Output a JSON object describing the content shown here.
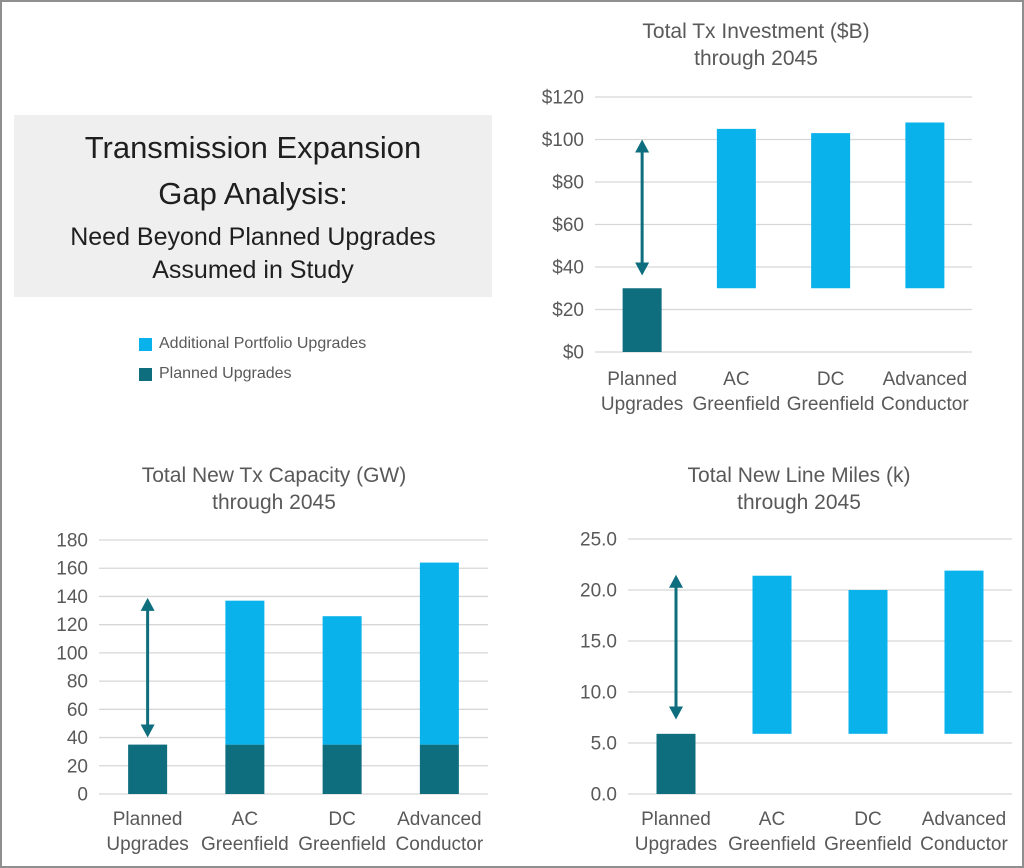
{
  "frame": {
    "border_color": "#8f8f8f",
    "background": "#ffffff"
  },
  "title_block": {
    "heading_lines": [
      "Transmission Expansion",
      "Gap Analysis:"
    ],
    "subheading_lines": [
      "Need Beyond Planned Upgrades",
      "Assumed in Study"
    ],
    "background": "#efefef",
    "text_color": "#1f1f1f"
  },
  "legend": {
    "items": [
      {
        "label": "Additional Portfolio Upgrades",
        "series": "additional",
        "color": "#0ab2ec"
      },
      {
        "label": "Planned Upgrades",
        "series": "planned",
        "color": "#0e6e7e"
      }
    ],
    "text_color": "#595959"
  },
  "colors": {
    "planned": "#0e6e7e",
    "additional": "#0ab2ec",
    "arrow": "#0e6e7e",
    "grid": "#d7d7d7",
    "axis_text": "#595959"
  },
  "chart_data": [
    {
      "type": "bar",
      "title": "Total Tx Investment ($B)",
      "subtitle": "through 2045",
      "unit": "$B",
      "categories": [
        "Planned Upgrades",
        "AC Greenfield",
        "DC Greenfield",
        "Advanced Conductor"
      ],
      "category_lines": [
        [
          "Planned",
          "Upgrades"
        ],
        [
          "AC",
          "Greenfield"
        ],
        [
          "DC",
          "Greenfield"
        ],
        [
          "Advanced",
          "Conductor"
        ]
      ],
      "ylim": [
        0,
        120
      ],
      "ytick_labels": [
        "$0",
        "$20",
        "$40",
        "$60",
        "$80",
        "$100",
        "$120"
      ],
      "grid": true,
      "legend_position": "none",
      "bars": [
        {
          "category": "Planned Upgrades",
          "segments": [
            {
              "series": "planned",
              "from": 0,
              "to": 30
            }
          ]
        },
        {
          "category": "AC Greenfield",
          "segments": [
            {
              "series": "additional",
              "from": 30,
              "to": 105
            }
          ]
        },
        {
          "category": "DC Greenfield",
          "segments": [
            {
              "series": "additional",
              "from": 30,
              "to": 103
            }
          ]
        },
        {
          "category": "Advanced Conductor",
          "segments": [
            {
              "series": "additional",
              "from": 30,
              "to": 108
            }
          ]
        }
      ],
      "gap_arrow": {
        "at_category": 0,
        "from": 36,
        "to": 100
      }
    },
    {
      "type": "bar",
      "title": "Total New Tx Capacity (GW)",
      "subtitle": "through 2045",
      "unit": "GW",
      "categories": [
        "Planned Upgrades",
        "AC Greenfield",
        "DC Greenfield",
        "Advanced Conductor"
      ],
      "category_lines": [
        [
          "Planned",
          "Upgrades"
        ],
        [
          "AC",
          "Greenfield"
        ],
        [
          "DC",
          "Greenfield"
        ],
        [
          "Advanced",
          "Conductor"
        ]
      ],
      "ylim": [
        0,
        180
      ],
      "ytick_labels": [
        "0",
        "20",
        "40",
        "60",
        "80",
        "100",
        "120",
        "140",
        "160",
        "180"
      ],
      "grid": true,
      "legend_position": "none",
      "bars": [
        {
          "category": "Planned Upgrades",
          "segments": [
            {
              "series": "planned",
              "from": 0,
              "to": 35
            }
          ]
        },
        {
          "category": "AC Greenfield",
          "segments": [
            {
              "series": "planned",
              "from": 0,
              "to": 35
            },
            {
              "series": "additional",
              "from": 35,
              "to": 137
            }
          ]
        },
        {
          "category": "DC Greenfield",
          "segments": [
            {
              "series": "planned",
              "from": 0,
              "to": 35
            },
            {
              "series": "additional",
              "from": 35,
              "to": 126
            }
          ]
        },
        {
          "category": "Advanced Conductor",
          "segments": [
            {
              "series": "planned",
              "from": 0,
              "to": 35
            },
            {
              "series": "additional",
              "from": 35,
              "to": 164
            }
          ]
        }
      ],
      "gap_arrow": {
        "at_category": 0,
        "from": 40,
        "to": 139
      }
    },
    {
      "type": "bar",
      "title": "Total New Line Miles (k)",
      "subtitle": "through 2045",
      "unit": "k miles",
      "categories": [
        "Planned Upgrades",
        "AC Greenfield",
        "DC Greenfield",
        "Advanced Conductor"
      ],
      "category_lines": [
        [
          "Planned",
          "Upgrades"
        ],
        [
          "AC",
          "Greenfield"
        ],
        [
          "DC",
          "Greenfield"
        ],
        [
          "Advanced",
          "Conductor"
        ]
      ],
      "ylim": [
        0,
        25
      ],
      "ytick_labels": [
        "0.0",
        "5.0",
        "10.0",
        "15.0",
        "20.0",
        "25.0"
      ],
      "grid": true,
      "legend_position": "none",
      "bars": [
        {
          "category": "Planned Upgrades",
          "segments": [
            {
              "series": "planned",
              "from": 0,
              "to": 5.9
            }
          ]
        },
        {
          "category": "AC Greenfield",
          "segments": [
            {
              "series": "additional",
              "from": 5.9,
              "to": 21.4
            }
          ]
        },
        {
          "category": "DC Greenfield",
          "segments": [
            {
              "series": "additional",
              "from": 5.9,
              "to": 20.0
            }
          ]
        },
        {
          "category": "Advanced Conductor",
          "segments": [
            {
              "series": "additional",
              "from": 5.9,
              "to": 21.9
            }
          ]
        }
      ],
      "gap_arrow": {
        "at_category": 0,
        "from": 7.3,
        "to": 21.5
      }
    }
  ]
}
